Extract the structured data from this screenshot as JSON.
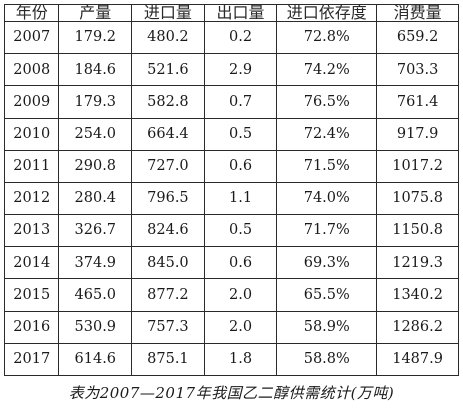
{
  "table": {
    "headers": [
      "年份",
      "产量",
      "进口量",
      "出口量",
      "进口依存度",
      "消费量"
    ],
    "rows": [
      [
        "2007",
        "179.2",
        "480.2",
        "0.2",
        "72.8%",
        "659.2"
      ],
      [
        "2008",
        "184.6",
        "521.6",
        "2.9",
        "74.2%",
        "703.3"
      ],
      [
        "2009",
        "179.3",
        "582.8",
        "0.7",
        "76.5%",
        "761.4"
      ],
      [
        "2010",
        "254.0",
        "664.4",
        "0.5",
        "72.4%",
        "917.9"
      ],
      [
        "2011",
        "290.8",
        "727.0",
        "0.6",
        "71.5%",
        "1017.2"
      ],
      [
        "2012",
        "280.4",
        "796.5",
        "1.1",
        "74.0%",
        "1075.8"
      ],
      [
        "2013",
        "326.7",
        "824.6",
        "0.5",
        "71.7%",
        "1150.8"
      ],
      [
        "2014",
        "374.9",
        "845.0",
        "0.6",
        "69.3%",
        "1219.3"
      ],
      [
        "2015",
        "465.0",
        "877.2",
        "2.0",
        "65.5%",
        "1340.2"
      ],
      [
        "2016",
        "530.9",
        "757.3",
        "2.0",
        "58.9%",
        "1286.2"
      ],
      [
        "2017",
        "614.6",
        "875.1",
        "1.8",
        "58.8%",
        "1487.9"
      ]
    ]
  },
  "caption": "表为2007—2017年我国乙二醇供需统计(万吨)"
}
